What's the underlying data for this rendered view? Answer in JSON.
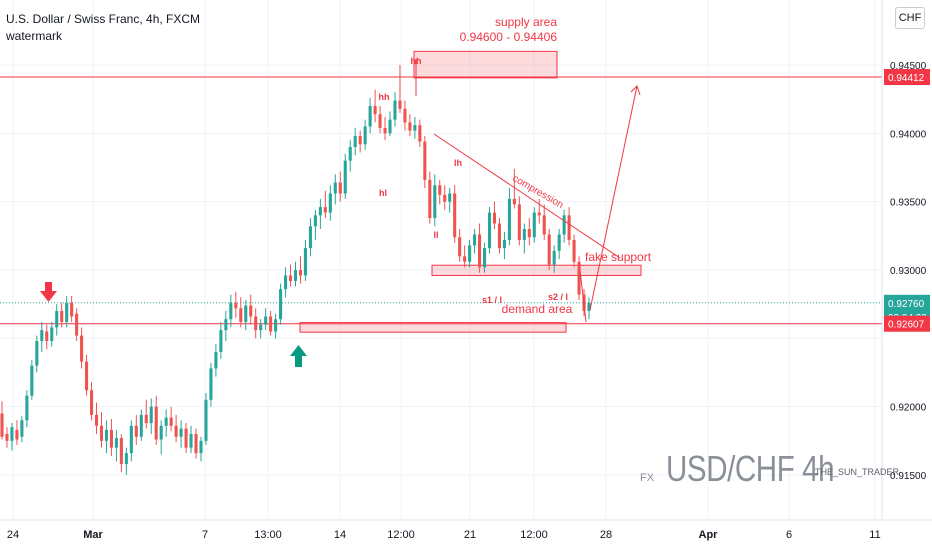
{
  "header": {
    "title": "U.S. Dollar / Swiss Franc, 4h, FXCM",
    "subtitle": "watermark",
    "currency": "CHF"
  },
  "watermark": {
    "prefix": "FX",
    "main": "USD/CHF 4h",
    "author": "THE_SUN_TRADER"
  },
  "chart_data": {
    "type": "candlestick",
    "symbol": "USDCHF",
    "timeframe": "4h",
    "ylim": [
      0.9143,
      0.9513
    ],
    "y_ticks": [
      0.915,
      0.92,
      0.925,
      0.93,
      0.935,
      0.94,
      0.945
    ],
    "y_tick_labels": [
      "0.91500",
      "0.92000",
      "",
      "0.93000",
      "0.93500",
      "0.94000",
      "0.94500"
    ],
    "x_tick_labels": [
      "24",
      "Mar",
      "7",
      "13:00",
      "14",
      "12:00",
      "21",
      "12:00",
      "28",
      "Apr",
      "6",
      "11"
    ],
    "colors": {
      "up": "#26a69a",
      "down": "#ef5350",
      "annot": "#f23645"
    },
    "price_labels": [
      {
        "value": 0.94412,
        "label": "0.94412",
        "color": "#f23645"
      },
      {
        "value": 0.9276,
        "label": "0.92760",
        "sub": "02:24:39",
        "color": "#26a69a"
      },
      {
        "value": 0.92607,
        "label": "0.92607",
        "color": "#f23645"
      }
    ],
    "horizontal_lines": [
      {
        "value": 0.94412,
        "color": "#f23645"
      },
      {
        "value": 0.92607,
        "color": "#f23645"
      },
      {
        "value": 0.9276,
        "color": "#26a69a",
        "dashed": true
      }
    ],
    "zones": [
      {
        "label": "supply area 0.94600 - 0.94406",
        "y1": 0.94406,
        "y2": 0.946
      },
      {
        "label": "fake support",
        "y1": 0.9296,
        "y2": 0.93035
      },
      {
        "label": "demand area",
        "y1": 0.92545,
        "y2": 0.92615
      }
    ],
    "annotations": {
      "supply_title": "supply area",
      "supply_range": "0.94600 - 0.94406",
      "fake_support": "fake support",
      "demand": "demand area",
      "compression": "compression",
      "hh_top": "hh",
      "hh": "hh",
      "lh": "lh",
      "hl": "hl",
      "ll": "ll",
      "s1": "s1 / l",
      "s2": "s2 / l"
    },
    "candles": [
      [
        0.9195,
        0.9204,
        0.9176,
        0.9178
      ],
      [
        0.918,
        0.9185,
        0.917,
        0.9175
      ],
      [
        0.9175,
        0.9188,
        0.9168,
        0.9185
      ],
      [
        0.9183,
        0.919,
        0.9172,
        0.9176
      ],
      [
        0.9178,
        0.9193,
        0.9174,
        0.919
      ],
      [
        0.919,
        0.9212,
        0.9185,
        0.9208
      ],
      [
        0.9208,
        0.9234,
        0.9205,
        0.923
      ],
      [
        0.923,
        0.9252,
        0.9225,
        0.9248
      ],
      [
        0.9248,
        0.9262,
        0.924,
        0.9256
      ],
      [
        0.9255,
        0.926,
        0.9242,
        0.9248
      ],
      [
        0.9248,
        0.9262,
        0.9244,
        0.9258
      ],
      [
        0.9258,
        0.9275,
        0.9252,
        0.927
      ],
      [
        0.927,
        0.9276,
        0.9258,
        0.9262
      ],
      [
        0.9262,
        0.9281,
        0.9258,
        0.9276
      ],
      [
        0.9276,
        0.9281,
        0.9262,
        0.9266
      ],
      [
        0.9268,
        0.9272,
        0.9248,
        0.9252
      ],
      [
        0.9252,
        0.9258,
        0.9228,
        0.9233
      ],
      [
        0.9233,
        0.9238,
        0.9208,
        0.9212
      ],
      [
        0.9212,
        0.9218,
        0.919,
        0.9194
      ],
      [
        0.9194,
        0.9203,
        0.918,
        0.9186
      ],
      [
        0.9186,
        0.9196,
        0.917,
        0.9175
      ],
      [
        0.9175,
        0.919,
        0.9166,
        0.9183
      ],
      [
        0.9183,
        0.9191,
        0.9164,
        0.917
      ],
      [
        0.917,
        0.9183,
        0.916,
        0.9177
      ],
      [
        0.9177,
        0.918,
        0.9152,
        0.9158
      ],
      [
        0.9158,
        0.917,
        0.915,
        0.9166
      ],
      [
        0.9166,
        0.919,
        0.916,
        0.9186
      ],
      [
        0.9186,
        0.9194,
        0.9172,
        0.9178
      ],
      [
        0.9178,
        0.9198,
        0.9175,
        0.9194
      ],
      [
        0.9194,
        0.9205,
        0.9184,
        0.9188
      ],
      [
        0.9188,
        0.9206,
        0.918,
        0.92
      ],
      [
        0.92,
        0.9208,
        0.9172,
        0.9176
      ],
      [
        0.9176,
        0.919,
        0.9165,
        0.9186
      ],
      [
        0.9186,
        0.9198,
        0.9178,
        0.9192
      ],
      [
        0.9192,
        0.92,
        0.9182,
        0.9186
      ],
      [
        0.9186,
        0.9194,
        0.9174,
        0.9178
      ],
      [
        0.9178,
        0.919,
        0.917,
        0.9184
      ],
      [
        0.9184,
        0.9188,
        0.9166,
        0.917
      ],
      [
        0.917,
        0.9186,
        0.9166,
        0.918
      ],
      [
        0.918,
        0.9184,
        0.9162,
        0.9166
      ],
      [
        0.9166,
        0.9178,
        0.916,
        0.9175
      ],
      [
        0.9175,
        0.921,
        0.9172,
        0.9205
      ],
      [
        0.9205,
        0.9232,
        0.92,
        0.9228
      ],
      [
        0.9228,
        0.9246,
        0.9222,
        0.924
      ],
      [
        0.924,
        0.9262,
        0.9235,
        0.9256
      ],
      [
        0.9256,
        0.927,
        0.9248,
        0.9264
      ],
      [
        0.9264,
        0.9282,
        0.9258,
        0.9276
      ],
      [
        0.9276,
        0.9284,
        0.9265,
        0.9272
      ],
      [
        0.9272,
        0.928,
        0.9258,
        0.9262
      ],
      [
        0.9262,
        0.9278,
        0.9256,
        0.9274
      ],
      [
        0.9274,
        0.9282,
        0.926,
        0.9266
      ],
      [
        0.9266,
        0.9272,
        0.925,
        0.9256
      ],
      [
        0.9256,
        0.9264,
        0.925,
        0.926
      ],
      [
        0.926,
        0.9272,
        0.9256,
        0.9266
      ],
      [
        0.9266,
        0.927,
        0.9252,
        0.9255
      ],
      [
        0.9255,
        0.9268,
        0.925,
        0.9264
      ],
      [
        0.9264,
        0.929,
        0.926,
        0.9286
      ],
      [
        0.9286,
        0.9302,
        0.928,
        0.9296
      ],
      [
        0.9296,
        0.9304,
        0.9288,
        0.9292
      ],
      [
        0.9292,
        0.9306,
        0.9288,
        0.93
      ],
      [
        0.93,
        0.931,
        0.929,
        0.9296
      ],
      [
        0.9296,
        0.9322,
        0.9292,
        0.9316
      ],
      [
        0.9316,
        0.9338,
        0.931,
        0.9332
      ],
      [
        0.9332,
        0.9344,
        0.9322,
        0.934
      ],
      [
        0.934,
        0.9352,
        0.933,
        0.9346
      ],
      [
        0.9346,
        0.9358,
        0.9338,
        0.9342
      ],
      [
        0.9342,
        0.9362,
        0.9336,
        0.9356
      ],
      [
        0.9356,
        0.937,
        0.9348,
        0.9364
      ],
      [
        0.9364,
        0.9372,
        0.935,
        0.9356
      ],
      [
        0.9356,
        0.9385,
        0.9352,
        0.938
      ],
      [
        0.938,
        0.9395,
        0.9372,
        0.939
      ],
      [
        0.939,
        0.9404,
        0.9384,
        0.9398
      ],
      [
        0.9398,
        0.9402,
        0.9386,
        0.9392
      ],
      [
        0.9392,
        0.941,
        0.9388,
        0.9405
      ],
      [
        0.9405,
        0.9426,
        0.94,
        0.942
      ],
      [
        0.942,
        0.9432,
        0.9408,
        0.9414
      ],
      [
        0.9414,
        0.942,
        0.94,
        0.9404
      ],
      [
        0.9404,
        0.9412,
        0.9395,
        0.94
      ],
      [
        0.94,
        0.9416,
        0.9398,
        0.941
      ],
      [
        0.941,
        0.943,
        0.9405,
        0.9424
      ],
      [
        0.9424,
        0.945,
        0.9415,
        0.9418
      ],
      [
        0.9418,
        0.9424,
        0.9402,
        0.9408
      ],
      [
        0.9408,
        0.9414,
        0.9398,
        0.9402
      ],
      [
        0.9402,
        0.9412,
        0.9396,
        0.9406
      ],
      [
        0.9406,
        0.941,
        0.939,
        0.9394
      ],
      [
        0.9394,
        0.9398,
        0.936,
        0.9366
      ],
      [
        0.9366,
        0.9372,
        0.9334,
        0.9338
      ],
      [
        0.9338,
        0.937,
        0.9332,
        0.9362
      ],
      [
        0.9362,
        0.9366,
        0.9348,
        0.9355
      ],
      [
        0.9355,
        0.9362,
        0.9344,
        0.935
      ],
      [
        0.935,
        0.936,
        0.9342,
        0.9356
      ],
      [
        0.9356,
        0.9362,
        0.932,
        0.9324
      ],
      [
        0.9324,
        0.933,
        0.9306,
        0.931
      ],
      [
        0.931,
        0.9318,
        0.9302,
        0.9306
      ],
      [
        0.9306,
        0.9322,
        0.9302,
        0.9318
      ],
      [
        0.9318,
        0.933,
        0.9312,
        0.9326
      ],
      [
        0.9326,
        0.9334,
        0.9298,
        0.9302
      ],
      [
        0.9302,
        0.932,
        0.9298,
        0.9316
      ],
      [
        0.9316,
        0.9346,
        0.9312,
        0.9342
      ],
      [
        0.9342,
        0.935,
        0.933,
        0.9334
      ],
      [
        0.9334,
        0.9338,
        0.9312,
        0.9316
      ],
      [
        0.9316,
        0.9328,
        0.9308,
        0.9322
      ],
      [
        0.9322,
        0.936,
        0.9318,
        0.9352
      ],
      [
        0.9352,
        0.9374,
        0.9345,
        0.9348
      ],
      [
        0.9348,
        0.9354,
        0.9318,
        0.9322
      ],
      [
        0.9322,
        0.9334,
        0.9312,
        0.933
      ],
      [
        0.933,
        0.9338,
        0.9318,
        0.9324
      ],
      [
        0.9324,
        0.9346,
        0.932,
        0.9342
      ],
      [
        0.9342,
        0.9352,
        0.9334,
        0.934
      ],
      [
        0.934,
        0.9348,
        0.9322,
        0.9326
      ],
      [
        0.9326,
        0.933,
        0.93,
        0.9304
      ],
      [
        0.9304,
        0.9318,
        0.9298,
        0.9314
      ],
      [
        0.9314,
        0.933,
        0.9308,
        0.9326
      ],
      [
        0.9326,
        0.9344,
        0.932,
        0.934
      ],
      [
        0.934,
        0.9346,
        0.9318,
        0.9322
      ],
      [
        0.9322,
        0.9326,
        0.9302,
        0.9306
      ],
      [
        0.9306,
        0.931,
        0.9278,
        0.9282
      ],
      [
        0.9282,
        0.9286,
        0.9266,
        0.927
      ],
      [
        0.927,
        0.928,
        0.9264,
        0.9276
      ]
    ]
  }
}
